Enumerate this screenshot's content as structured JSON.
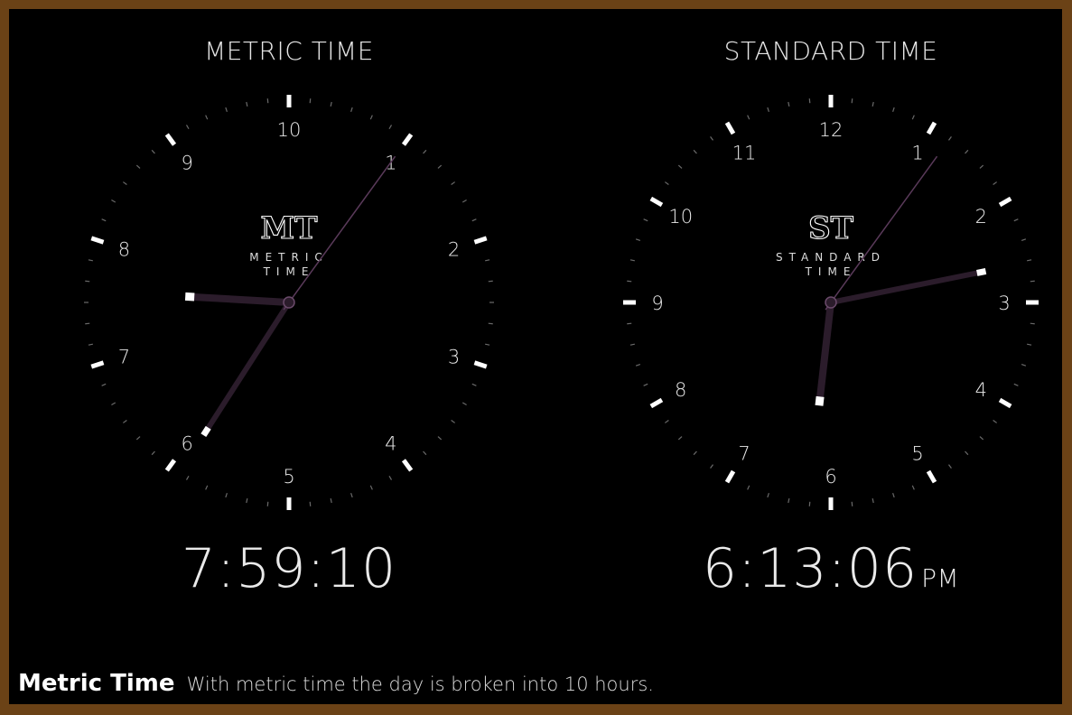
{
  "metric_clock": {
    "title": "METRIC TIME",
    "logo": "MT",
    "subtitle_line1": "METRIC",
    "subtitle_line2": "TIME",
    "numerals": [
      "10",
      "1",
      "2",
      "3",
      "4",
      "5",
      "6",
      "7",
      "8",
      "9"
    ],
    "time": "7:59:10",
    "hours": 7,
    "minutes": 59,
    "seconds": 10
  },
  "standard_clock": {
    "title": "STANDARD TIME",
    "logo": "ST",
    "subtitle_line1": "STANDARD",
    "subtitle_line2": "TIME",
    "numerals": [
      "12",
      "1",
      "2",
      "3",
      "4",
      "5",
      "6",
      "7",
      "8",
      "9",
      "10",
      "11"
    ],
    "time": "6:13:06",
    "ampm": "PM",
    "hours": 6,
    "minutes": 13,
    "seconds": 6
  },
  "caption": {
    "title": "Metric Time",
    "text": "With metric time the day is broken into 10 hours."
  },
  "colors": {
    "frame": "#6b4216",
    "background": "#000000",
    "hand": "#2a1a2a",
    "tick": "#ffffff"
  }
}
